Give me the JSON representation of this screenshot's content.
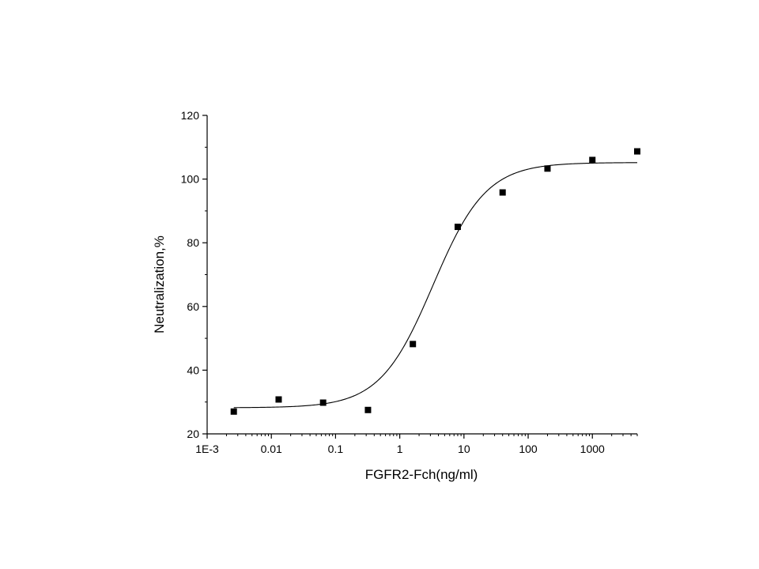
{
  "chart_data": {
    "type": "scatter",
    "xlabel": "FGFR2-Fch(ng/ml)",
    "ylabel": "Neutralization,%",
    "xscale": "log",
    "xlim": [
      0.001,
      5000
    ],
    "ylim": [
      20,
      120
    ],
    "grid": false,
    "legend": "none",
    "x_tick_labels": [
      "1E-3",
      "0.01",
      "0.1",
      "1",
      "10",
      "100",
      "1000"
    ],
    "x_tick_values": [
      0.001,
      0.01,
      0.1,
      1,
      10,
      100,
      1000
    ],
    "y_ticks": [
      20,
      40,
      60,
      80,
      100,
      120
    ],
    "series": [
      {
        "style": "markers",
        "marker": "square",
        "x": [
          0.0026,
          0.013,
          0.064,
          0.32,
          1.6,
          8,
          40,
          200,
          1000,
          5000
        ],
        "y": [
          27.0,
          30.8,
          29.8,
          27.5,
          48.2,
          85.0,
          95.8,
          103.3,
          106.0,
          108.7
        ]
      },
      {
        "style": "line",
        "fit": "logistic",
        "params": {
          "bottom": 28.2,
          "top": 105.2,
          "ec50": 3.3,
          "hill": 1.05
        }
      }
    ],
    "colors": {
      "markers": "#000000",
      "line": "#000000",
      "axes": "#000000"
    }
  }
}
